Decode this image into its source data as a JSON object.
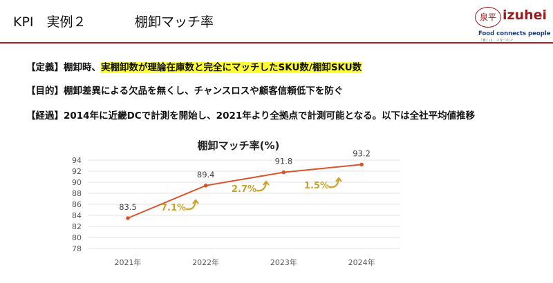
{
  "header": {
    "kpi_label": "KPI　実例２",
    "title": "棚卸マッチ率"
  },
  "logo": {
    "mark": "泉平",
    "word": "izuhei",
    "tagline": "Food connects people",
    "sub": "「食」は、人をつなぐ"
  },
  "definition": {
    "label": "【定義】",
    "prefix": "棚卸時、",
    "highlight": "実棚卸数が理論在庫数と完全にマッチしたSKU数/棚卸SKU数"
  },
  "purpose": {
    "label": "【目的】",
    "text": "棚卸差異による欠品を無くし、チャンスロスや顧客信頼低下を防ぐ"
  },
  "history": {
    "label": "【経過】",
    "text": "2014年に近畿DCで計測を開始し、2021年より全拠点で計測可能となる。以下は全社平均値推移"
  },
  "colors": {
    "line": "#d9532b",
    "annotation": "#c9a227",
    "rule": "#b01a1a",
    "highlight": "#ffff33"
  },
  "chart_data": {
    "type": "line",
    "title": "棚卸マッチ率(%)",
    "categories": [
      "2021年",
      "2022年",
      "2023年",
      "2024年"
    ],
    "values": [
      83.5,
      89.4,
      91.8,
      93.2
    ],
    "data_labels": [
      "83.5",
      "89.4",
      "91.8",
      "93.2"
    ],
    "growth_annotations": [
      "7.1%",
      "2.7%",
      "1.5%"
    ],
    "ylim": [
      78,
      94
    ],
    "yticks": [
      78,
      80,
      82,
      84,
      86,
      88,
      90,
      92,
      94
    ],
    "grid": true,
    "legend": "none"
  }
}
